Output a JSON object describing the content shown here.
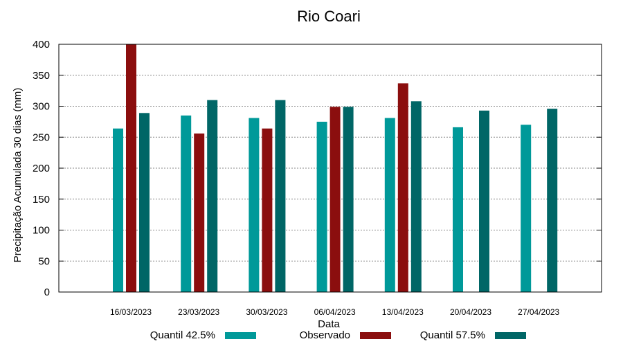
{
  "chart_data": {
    "type": "bar",
    "title": "Rio Coari",
    "xlabel": "Data",
    "ylabel": "Precipitação Acumulada 30 dias (mm)",
    "ylim": [
      0,
      400
    ],
    "yticks": [
      "0",
      "50",
      "100",
      "150",
      "200",
      "250",
      "300",
      "350",
      "400"
    ],
    "grid": true,
    "legend_position": "bottom",
    "categories": [
      "16/03/2023",
      "23/03/2023",
      "30/03/2023",
      "06/04/2023",
      "13/04/2023",
      "20/04/2023",
      "27/04/2023"
    ],
    "series": [
      {
        "name": "Quantil 42.5%",
        "color": "#009999",
        "values": [
          264,
          285,
          281,
          275,
          281,
          266,
          270
        ]
      },
      {
        "name": "Observado",
        "color": "#8b0e0e",
        "values": [
          400,
          256,
          264,
          299,
          337,
          null,
          null
        ]
      },
      {
        "name": "Quantil 57.5%",
        "color": "#006666",
        "values": [
          289,
          310,
          310,
          299,
          308,
          293,
          296
        ]
      }
    ]
  }
}
